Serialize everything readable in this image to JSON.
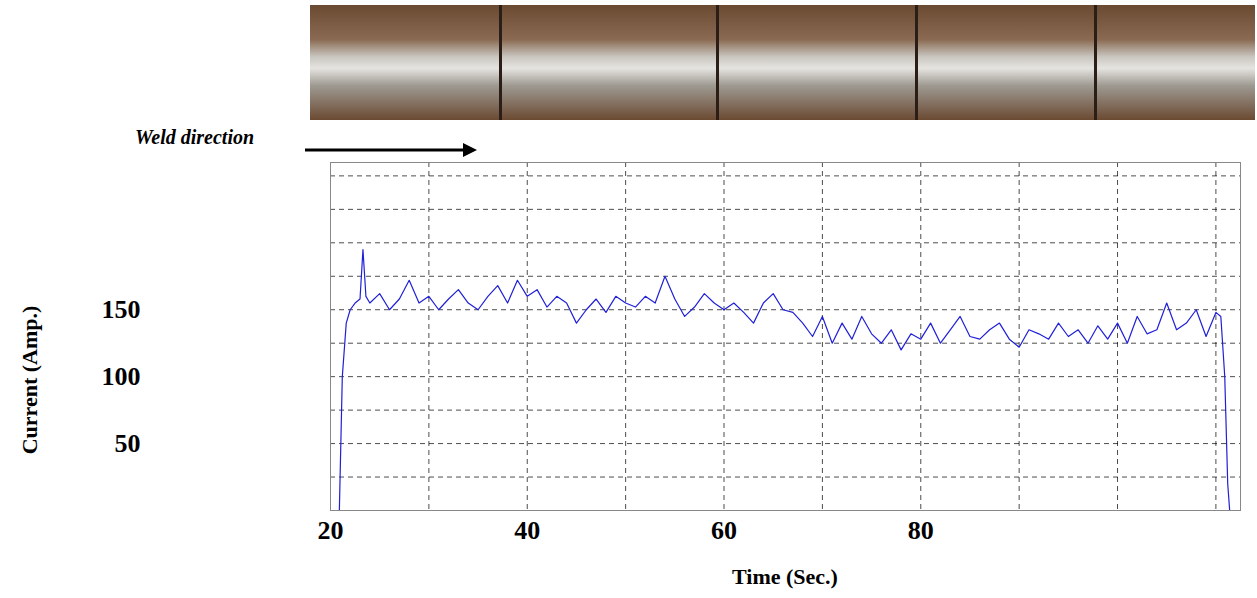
{
  "chart_data": {
    "type": "line",
    "x_label": "Time (Sec.)",
    "y_label": "Current (Amp.)",
    "annotations": [
      {
        "text": "Weld direction"
      }
    ],
    "xlim": [
      20,
      112.5
    ],
    "xticks": [
      20,
      40,
      60,
      80
    ],
    "ylim": [
      0,
      260
    ],
    "yticks": [
      50,
      100,
      150
    ],
    "grid": true,
    "x": [
      20.9,
      21.2,
      21.6,
      22,
      22.5,
      23,
      23.3,
      23.6,
      24,
      25,
      26,
      27,
      28,
      29,
      30,
      31,
      32,
      33,
      34,
      35,
      36,
      37,
      38,
      39,
      40,
      41,
      42,
      43,
      44,
      45,
      46,
      47,
      48,
      49,
      50,
      51,
      52,
      53,
      54,
      55,
      56,
      57,
      58,
      59,
      60,
      61,
      62,
      63,
      64,
      65,
      66,
      67,
      68,
      69,
      70,
      71,
      72,
      73,
      74,
      75,
      76,
      77,
      78,
      79,
      80,
      81,
      82,
      83,
      84,
      85,
      86,
      87,
      88,
      89,
      90,
      91,
      92,
      93,
      94,
      95,
      96,
      97,
      98,
      99,
      100,
      101,
      102,
      103,
      104,
      105,
      106,
      107,
      108,
      109,
      110,
      110.5,
      110.9,
      111.2,
      111.4
    ],
    "series": [
      {
        "name": "Current",
        "color": "#2020d8",
        "values": [
          0,
          100,
          140,
          150,
          155,
          158,
          195,
          160,
          155,
          162,
          150,
          158,
          172,
          155,
          160,
          150,
          158,
          165,
          155,
          150,
          160,
          168,
          155,
          172,
          160,
          165,
          152,
          160,
          155,
          140,
          150,
          158,
          148,
          160,
          155,
          152,
          160,
          155,
          175,
          158,
          145,
          152,
          162,
          155,
          150,
          155,
          148,
          140,
          155,
          162,
          150,
          148,
          140,
          130,
          145,
          125,
          140,
          128,
          145,
          132,
          125,
          135,
          120,
          132,
          128,
          140,
          125,
          135,
          145,
          130,
          128,
          135,
          140,
          128,
          122,
          135,
          132,
          128,
          140,
          130,
          135,
          125,
          138,
          128,
          140,
          125,
          145,
          132,
          135,
          155,
          135,
          140,
          150,
          130,
          148,
          145,
          100,
          20,
          0
        ]
      }
    ]
  }
}
